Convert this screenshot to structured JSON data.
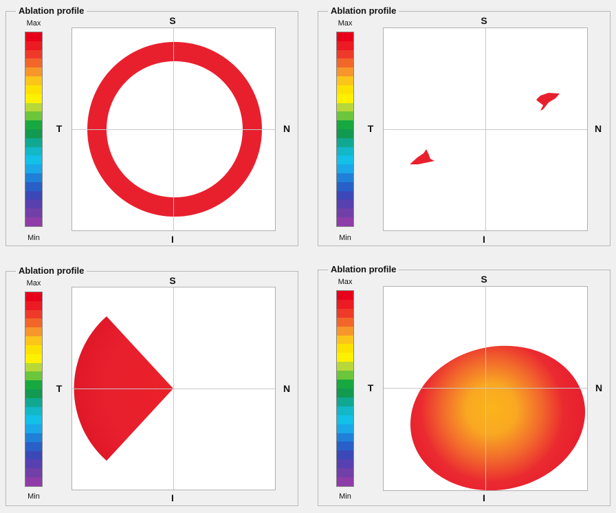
{
  "panels": [
    {
      "title": "Ablation profile",
      "scale_max": "Max",
      "scale_min": "Min",
      "dir_s": "S",
      "dir_i": "I",
      "dir_t": "T",
      "dir_n": "N",
      "shape": "ring"
    },
    {
      "title": "Ablation profile",
      "scale_max": "Max",
      "scale_min": "Min",
      "dir_s": "S",
      "dir_i": "I",
      "dir_t": "T",
      "dir_n": "N",
      "shape": "two-islands"
    },
    {
      "title": "Ablation profile",
      "scale_max": "Max",
      "scale_min": "Min",
      "dir_s": "S",
      "dir_i": "I",
      "dir_t": "T",
      "dir_n": "N",
      "shape": "wedge"
    },
    {
      "title": "Ablation profile",
      "scale_max": "Max",
      "scale_min": "Min",
      "dir_s": "S",
      "dir_i": "I",
      "dir_t": "T",
      "dir_n": "N",
      "shape": "ellipse-gradient"
    }
  ],
  "colorbar_colors": [
    "#e8001a",
    "#ec1a22",
    "#ef3a2a",
    "#f2662a",
    "#f7962a",
    "#fbc51a",
    "#fde200",
    "#fdf100",
    "#b8d838",
    "#6cc63c",
    "#18a840",
    "#129a50",
    "#10a890",
    "#12b8c8",
    "#12c0e8",
    "#1aa8e8",
    "#2080d8",
    "#2860c8",
    "#3c48b8",
    "#5840b0",
    "#7040a8",
    "#8e3ca8"
  ],
  "colors": {
    "ablation_red": "#e8202e",
    "ablation_orange": "#f7962a",
    "ablation_yellow": "#fbc51a",
    "crosshair": "#c8c8c8"
  }
}
